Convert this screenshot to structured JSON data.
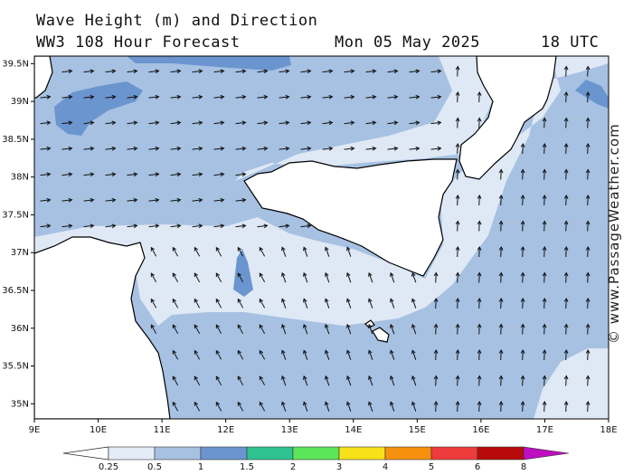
{
  "header": {
    "title": "Wave Height (m) and Direction",
    "model": "WW3 108 Hour Forecast",
    "date": "Mon 05 May 2025",
    "time": "18 UTC"
  },
  "watermark": "© www.PassageWeather.com",
  "axes": {
    "lat_labels": [
      "39.5N",
      "39N",
      "38.5N",
      "38N",
      "37.5N",
      "37N",
      "36.5N",
      "36N",
      "35.5N",
      "35N"
    ],
    "lat_values": [
      39.5,
      39,
      38.5,
      38,
      37.5,
      37,
      36.5,
      36,
      35.5,
      35
    ],
    "lon_labels": [
      "9E",
      "10E",
      "11E",
      "12E",
      "13E",
      "14E",
      "15E",
      "16E",
      "17E",
      "18E"
    ],
    "lon_values": [
      9,
      10,
      11,
      12,
      13,
      14,
      15,
      16,
      17,
      18
    ],
    "lon_range": [
      9,
      18
    ],
    "lat_range": [
      34.8,
      39.6
    ]
  },
  "legend": {
    "labels": [
      "0.25",
      "0.5",
      "1",
      "1.5",
      "2",
      "3",
      "4",
      "5",
      "6",
      "8"
    ],
    "colors": [
      "#e4ecf6",
      "#a6c1e2",
      "#6b95cf",
      "#2dc28f",
      "#5be65a",
      "#f7e21a",
      "#f6910f",
      "#ee3b3b",
      "#b80a0a",
      "#bd0ec0"
    ]
  },
  "wave_classes": {
    "light": "#dfe8f5",
    "medium": "#a6c1e2",
    "dark": "#6b95cf",
    "land": "#ffffff"
  }
}
